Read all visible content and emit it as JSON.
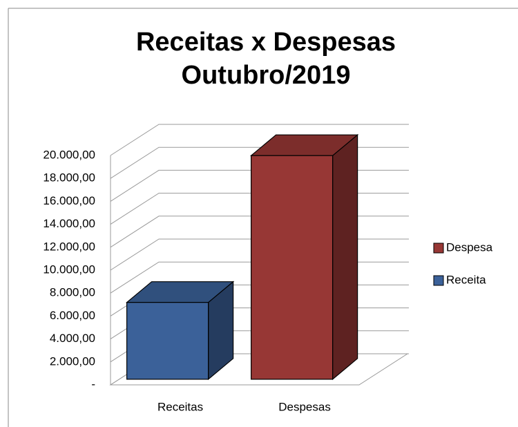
{
  "chart_data": {
    "type": "bar3d",
    "title": [
      "Receitas x Despesas",
      "Outubro/2019"
    ],
    "categories": [
      "Receitas",
      "Despesas"
    ],
    "series": [
      {
        "name": "Receita",
        "color": "#3b6199",
        "values": [
          6700,
          null
        ]
      },
      {
        "name": "Despesa",
        "color": "#973735",
        "values": [
          null,
          19500
        ]
      }
    ],
    "ylim": [
      0,
      20000
    ],
    "yticks": [
      {
        "value": 0,
        "label": "-"
      },
      {
        "value": 2000,
        "label": "2.000,00"
      },
      {
        "value": 4000,
        "label": "4.000,00"
      },
      {
        "value": 6000,
        "label": "6.000,00"
      },
      {
        "value": 8000,
        "label": "8.000,00"
      },
      {
        "value": 10000,
        "label": "10.000,00"
      },
      {
        "value": 12000,
        "label": "12.000,00"
      },
      {
        "value": 14000,
        "label": "14.000,00"
      },
      {
        "value": 16000,
        "label": "16.000,00"
      },
      {
        "value": 18000,
        "label": "18.000,00"
      },
      {
        "value": 20000,
        "label": "20.000,00"
      }
    ],
    "grid": true,
    "legend": "right"
  }
}
